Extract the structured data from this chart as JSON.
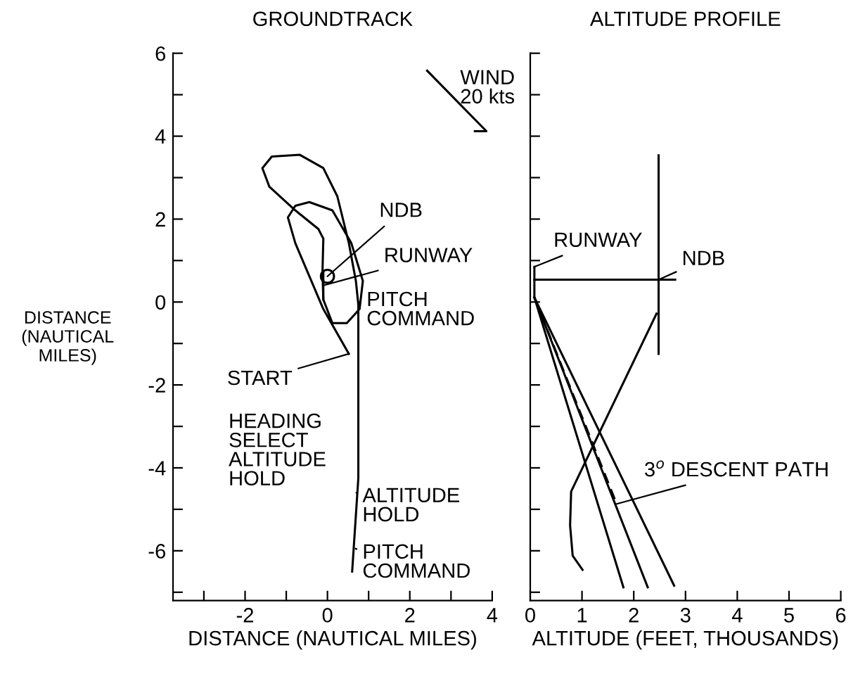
{
  "chart_data": [
    {
      "type": "line",
      "title": "GROUNDTRACK",
      "xlabel": "DISTANCE (NAUTICAL MILES)",
      "ylabel": "DISTANCE\n(NAUTICAL\nMILES)",
      "xlim": [
        -3.75,
        4
      ],
      "ylim": [
        -7.2,
        6
      ],
      "xticks": [
        {
          "value": -3,
          "label": null
        },
        -2,
        {
          "value": -1,
          "label": null
        },
        0,
        {
          "value": 1,
          "label": null
        },
        2,
        {
          "value": 3,
          "label": null
        },
        4
      ],
      "yticks": [
        {
          "value": -7,
          "label": null
        },
        -6,
        {
          "value": -5,
          "label": null
        },
        -4,
        {
          "value": -3,
          "label": null
        },
        -2,
        {
          "value": -1,
          "label": null
        },
        0,
        {
          "value": 1,
          "label": null
        },
        2,
        {
          "value": 3,
          "label": null
        },
        4,
        {
          "value": 5,
          "label": null
        },
        6
      ],
      "series": [
        {
          "color": "#000000",
          "line_style": "solid",
          "x": [
            0.52,
            -0.1,
            -0.78,
            -0.96,
            -0.78,
            -0.44,
            0.12,
            0.58,
            0.86,
            0.78,
            0.47,
            0.12,
            -0.1,
            -0.12,
            -0.1,
            -0.22,
            -0.78,
            -1.41,
            -1.58,
            -1.35,
            -0.67,
            -0.1,
            0.24,
            0.52,
            0.69,
            0.75,
            0.75,
            0.6
          ],
          "values": [
            -1.25,
            -0.17,
            1.42,
            2.04,
            2.32,
            2.41,
            2.21,
            1.42,
            0.51,
            -0.17,
            -0.51,
            -0.51,
            0.06,
            0.74,
            1.53,
            1.76,
            2.21,
            2.78,
            3.23,
            3.51,
            3.55,
            3.23,
            2.55,
            1.42,
            0.51,
            -0.06,
            -4.25,
            -6.5
          ]
        },
        {
          "color": "#000000",
          "line_style": "solid",
          "x": [
            -0.1,
            -0.1
          ],
          "values": [
            0.06,
            0.74
          ]
        },
        {
          "type": "scatter",
          "color": "#000000",
          "marker": "circle",
          "x": [
            0.0
          ],
          "values": [
            0.62
          ]
        }
      ],
      "annotations": [
        {
          "text": "NDB",
          "x": 0.0,
          "y": 0.62
        },
        {
          "text": "RUNWAY",
          "x": -0.1,
          "y": 0.4
        },
        {
          "text": "PITCH\nCOMMAND",
          "x": 0.75,
          "y": 0.0
        },
        {
          "text": "START",
          "x": 0.52,
          "y": -1.25
        },
        "HEADING\nSELECT\nALTITUDE\nHOLD",
        {
          "text": "ALTITUDE\nHOLD",
          "x": 0.7,
          "y": -4.6
        },
        {
          "text": "PITCH\nCOMMAND",
          "x": 0.68,
          "y": -5.95
        },
        "WIND\n20 kts"
      ]
    },
    {
      "type": "line",
      "title": "ALTITUDE PROFILE",
      "xlabel": "ALTITUDE (FEET, THOUSANDS)",
      "xlim": [
        0,
        6
      ],
      "ylim": [
        -7.2,
        6
      ],
      "tick_labels": "x",
      "xticks": [
        0,
        1,
        2,
        3,
        4,
        5,
        6
      ],
      "yticks": [
        -7,
        -6,
        -5,
        -4,
        -3,
        -2,
        -1,
        0,
        1,
        2,
        3,
        4,
        5,
        6
      ],
      "series": [
        {
          "color": "#000000",
          "line_style": "solid",
          "x": [
            2.48,
            2.48
          ],
          "values": [
            3.54,
            -1.25
          ]
        },
        {
          "color": "#000000",
          "line_style": "solid",
          "x": [
            2.44,
            0.79,
            0.77,
            0.82,
            1.01
          ],
          "values": [
            -0.28,
            -4.57,
            -5.39,
            -6.12,
            -6.46
          ]
        },
        {
          "color": "#000000",
          "line_style": "solid",
          "x": [
            0.08,
            2.8
          ],
          "values": [
            0.54,
            0.54
          ]
        },
        {
          "color": "#000000",
          "line_style": "solid",
          "x": [
            0.08,
            0.08,
            1.8
          ],
          "values": [
            0.85,
            0.11,
            -6.88
          ]
        },
        {
          "color": "#000000",
          "line_style": "solid",
          "x": [
            0.08,
            2.27
          ],
          "values": [
            0.11,
            -6.88
          ]
        },
        {
          "color": "#000000",
          "line_style": "solid",
          "x": [
            0.08,
            2.78
          ],
          "values": [
            0.11,
            -6.84
          ]
        },
        {
          "color": "#000000",
          "line_style": "dashed",
          "x": [
            0.08,
            1.67
          ],
          "values": [
            0.11,
            -4.87
          ]
        }
      ],
      "annotations": [
        {
          "text": "RUNWAY",
          "x": 0.08,
          "y": 0.85
        },
        {
          "text": "NDB",
          "x": 2.48,
          "y": 0.54
        },
        {
          "text": "3$^{o}$ DESCENT PATH",
          "x": 1.67,
          "y": -4.87
        }
      ]
    }
  ]
}
